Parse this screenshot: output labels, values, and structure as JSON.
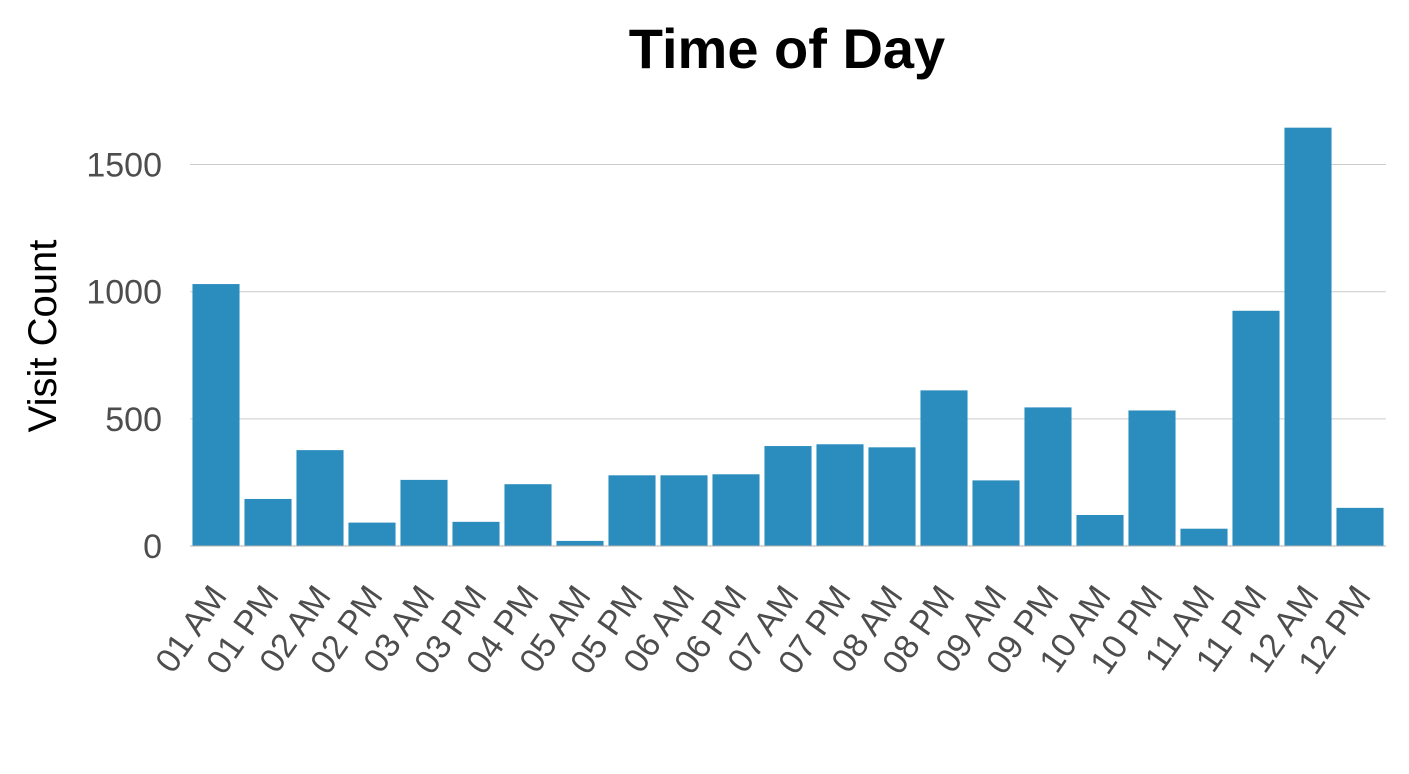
{
  "chart_data": {
    "type": "bar",
    "title": "Time of Day",
    "xlabel": "",
    "ylabel": "Visit Count",
    "categories": [
      "01 AM",
      "01 PM",
      "02 AM",
      "02 PM",
      "03 AM",
      "03 PM",
      "04 PM",
      "05 AM",
      "05 PM",
      "06 AM",
      "06 PM",
      "07 AM",
      "07 PM",
      "08 AM",
      "08 PM",
      "09 AM",
      "09 PM",
      "10 AM",
      "10 PM",
      "11 AM",
      "11 PM",
      "12 AM",
      "12 PM"
    ],
    "values": [
      1030,
      185,
      377,
      92,
      260,
      95,
      243,
      20,
      278,
      278,
      282,
      393,
      400,
      388,
      612,
      258,
      545,
      122,
      533,
      68,
      925,
      1645,
      150
    ],
    "ylim": [
      0,
      1650
    ],
    "yticks": [
      0,
      500,
      1000,
      1500
    ],
    "grid": true,
    "legend": "none",
    "colors": {
      "bar": "#2b8cbe"
    }
  }
}
